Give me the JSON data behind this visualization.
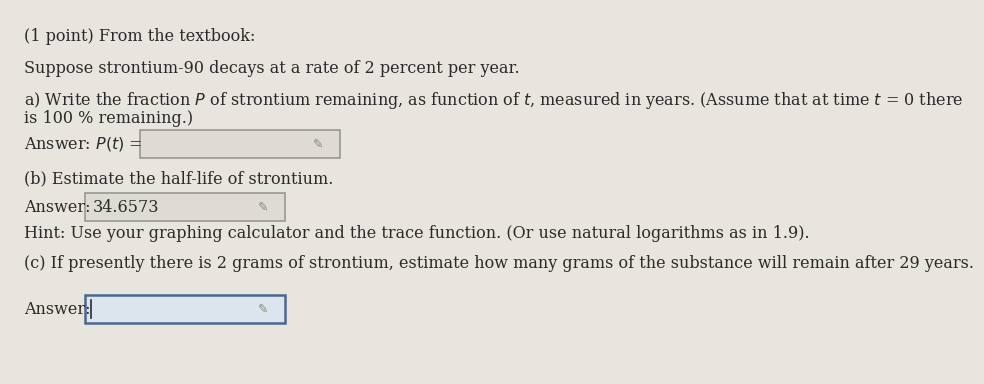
{
  "bg_color": "#e8e4de",
  "text_color": "#2a2a2a",
  "header": "(1 point) From the textbook:",
  "intro": "Suppose strontium-90 decays at a rate of 2 percent per year.",
  "part_a_line1": "a) Write the fraction $P$ of strontium remaining, as function of $t$, measured in years. (Assume that at time $t$ = 0 there",
  "part_a_line2": "is 100 % remaining.)",
  "answer_a_label": "Answer: $P(t)$ =",
  "answer_b_value": "34.6573",
  "answer_b_label": "Answer:",
  "part_b": "(b) Estimate the half-life of strontium.",
  "hint": "Hint: Use your graphing calculator and the trace function. (Or use natural logarithms as in 1.9).",
  "part_c": "(c) If presently there is 2 grams of strontium, estimate how many grams of the substance will remain after 29 years.",
  "answer_c_label": "Answer:",
  "box_fill_ab": "#dedad4",
  "box_fill_c": "#dce4ed",
  "box_border_ab": "#999990",
  "box_border_c": "#4a6890",
  "pencil_color": "#888880",
  "font_size": 11.5
}
